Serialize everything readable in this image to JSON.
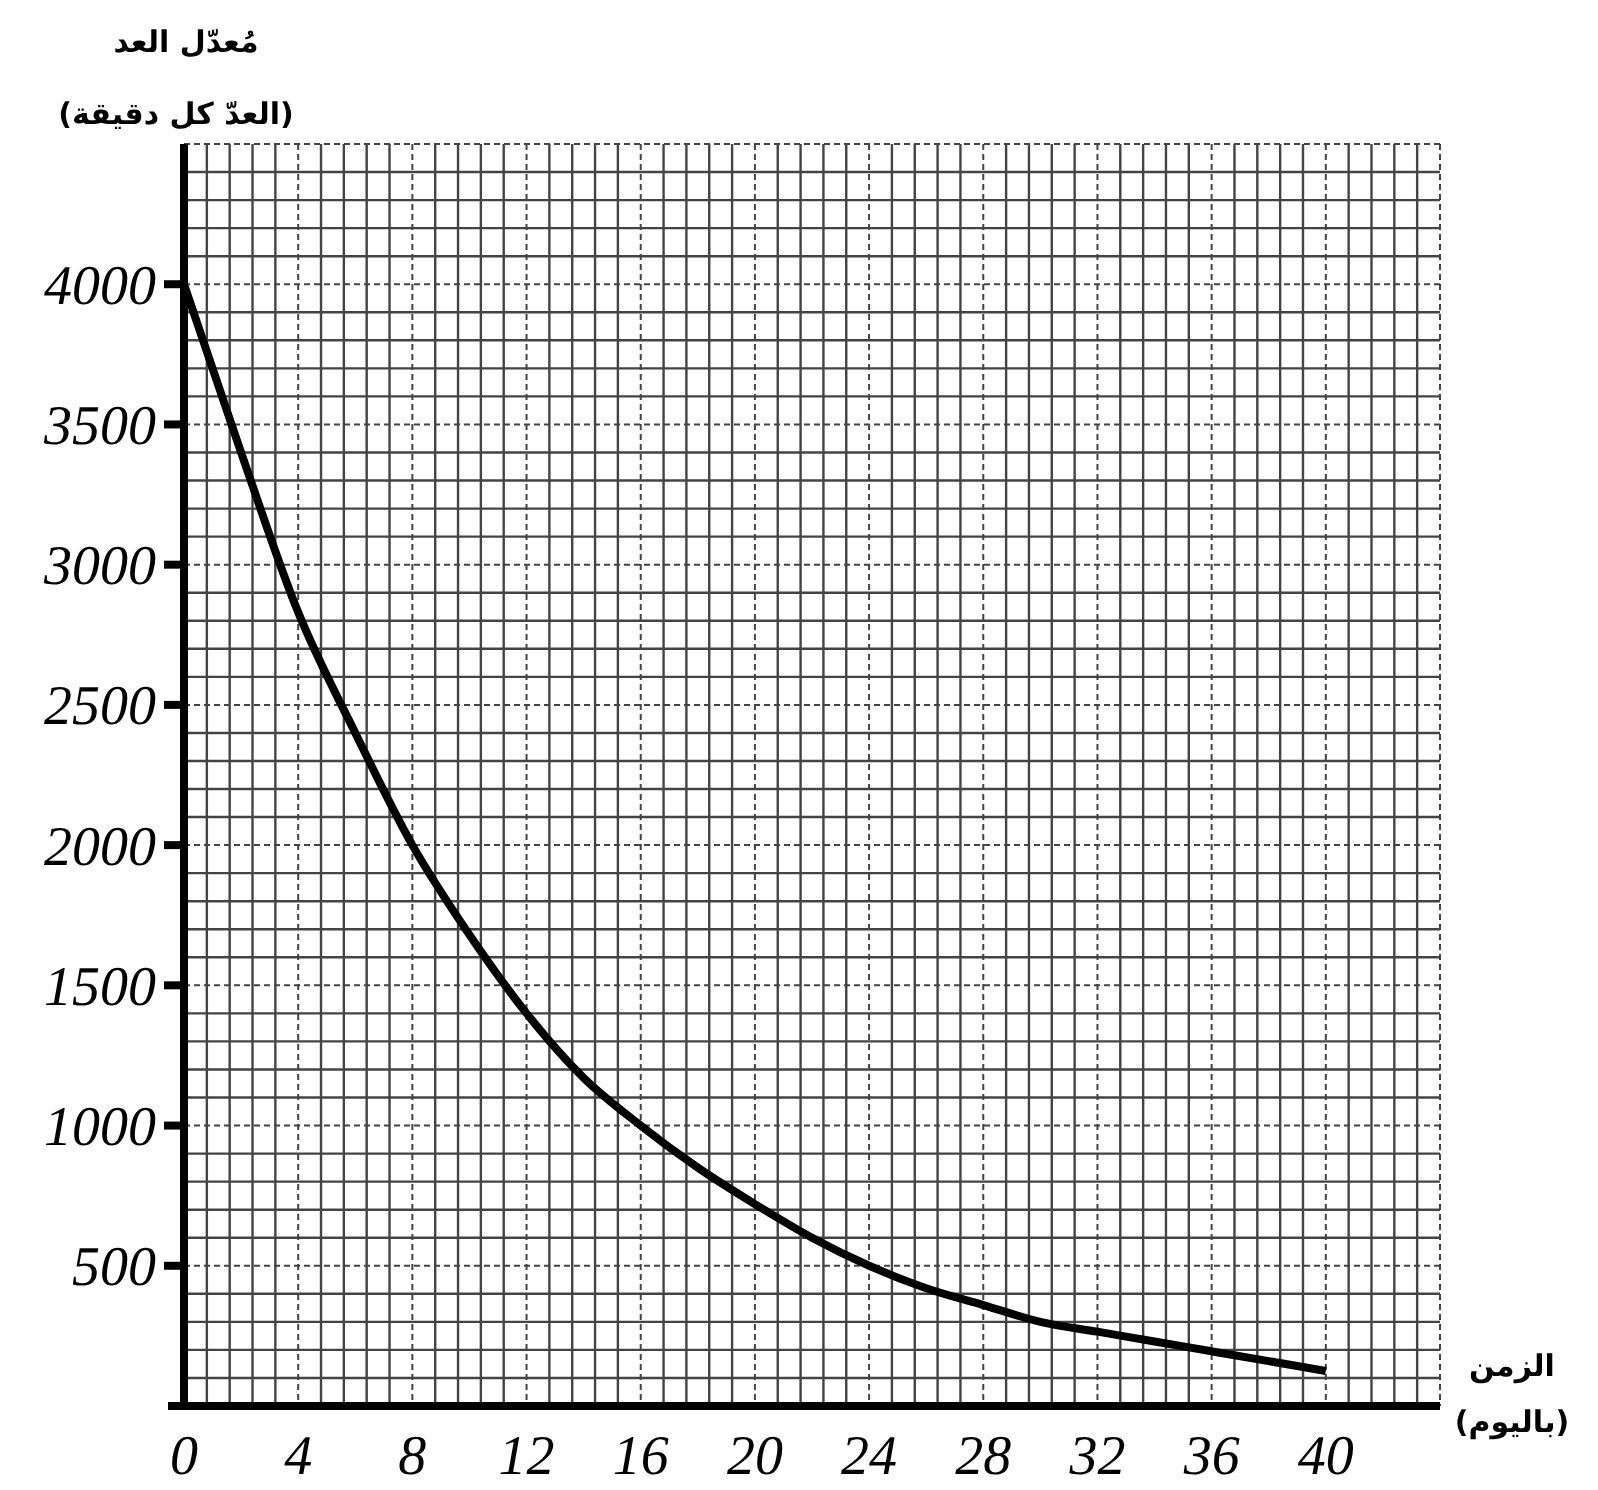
{
  "chart_data": {
    "type": "line",
    "xlabel": "الزمن\n(باليوم)",
    "ylabel": "مُعدّل العد\n(العدّ كل دقيقة)",
    "x": [
      0,
      2,
      4,
      6,
      8,
      10,
      12,
      14,
      16,
      18,
      20,
      22,
      24,
      26,
      28,
      30,
      32,
      34,
      36,
      38,
      40
    ],
    "series": [
      {
        "color": "#000000",
        "values": [
          4000,
          3400,
          2830,
          2400,
          2000,
          1680,
          1400,
          1170,
          1000,
          850,
          720,
          600,
          500,
          420,
          360,
          300,
          265,
          230,
          195,
          160,
          125
        ]
      }
    ],
    "xlim": [
      0,
      44
    ],
    "xticks": [
      0,
      4,
      8,
      12,
      16,
      20,
      24,
      28,
      32,
      36,
      40
    ],
    "ylim": [
      0,
      4500
    ],
    "yticks": [
      500,
      1000,
      1500,
      2000,
      2500,
      3000,
      3500,
      4000
    ],
    "grid": true,
    "marker": "none",
    "line_style": "solid"
  }
}
